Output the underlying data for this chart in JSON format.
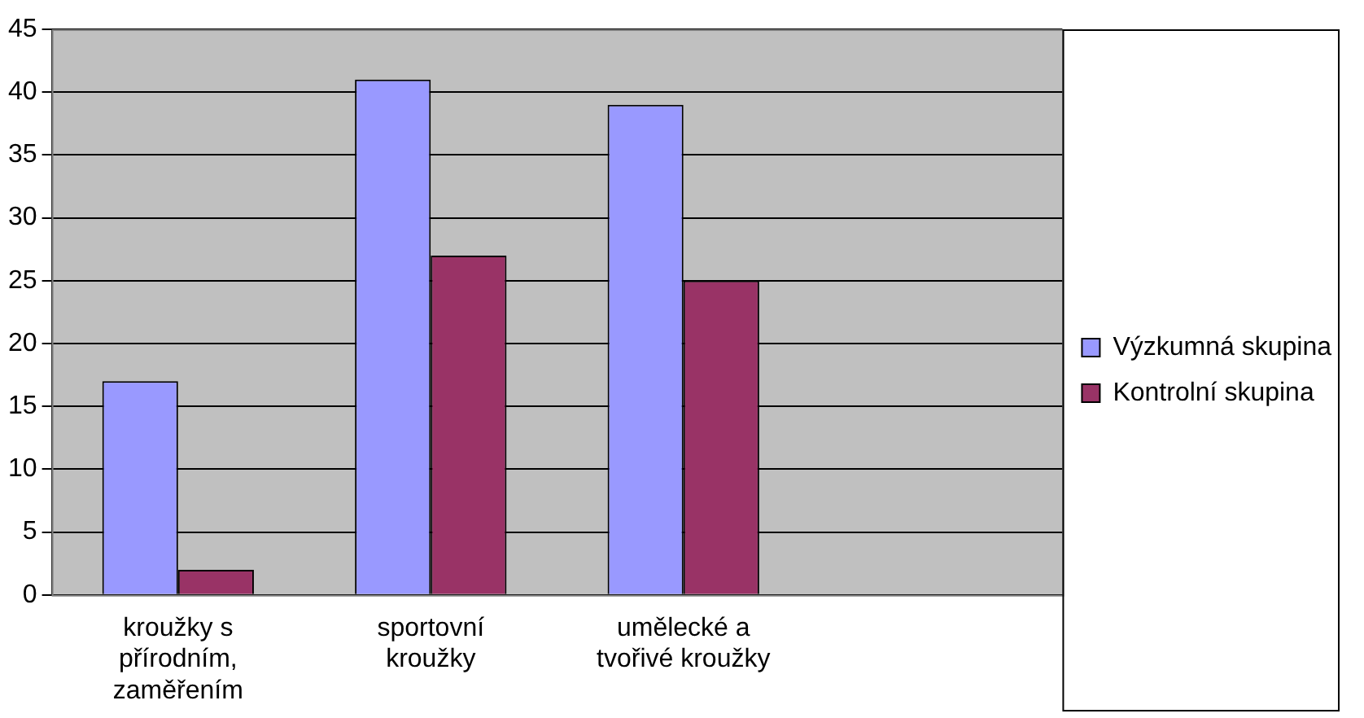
{
  "chart_data": {
    "type": "bar",
    "categories": [
      "kroužky s přírodním, zaměřením",
      "sportovní kroužky",
      "umělecké a tvořivé kroužky",
      null
    ],
    "series": [
      {
        "name": "Výzkumná skupina",
        "color": "#9999ff",
        "values": [
          17,
          41,
          39,
          null
        ]
      },
      {
        "name": "Kontrolní skupina",
        "color": "#993366",
        "values": [
          2,
          27,
          25,
          null
        ]
      }
    ],
    "ylim": [
      0,
      45
    ],
    "yticks": [
      0,
      5,
      10,
      15,
      20,
      25,
      30,
      35,
      40,
      45
    ],
    "grid": "y",
    "legend": "right"
  }
}
